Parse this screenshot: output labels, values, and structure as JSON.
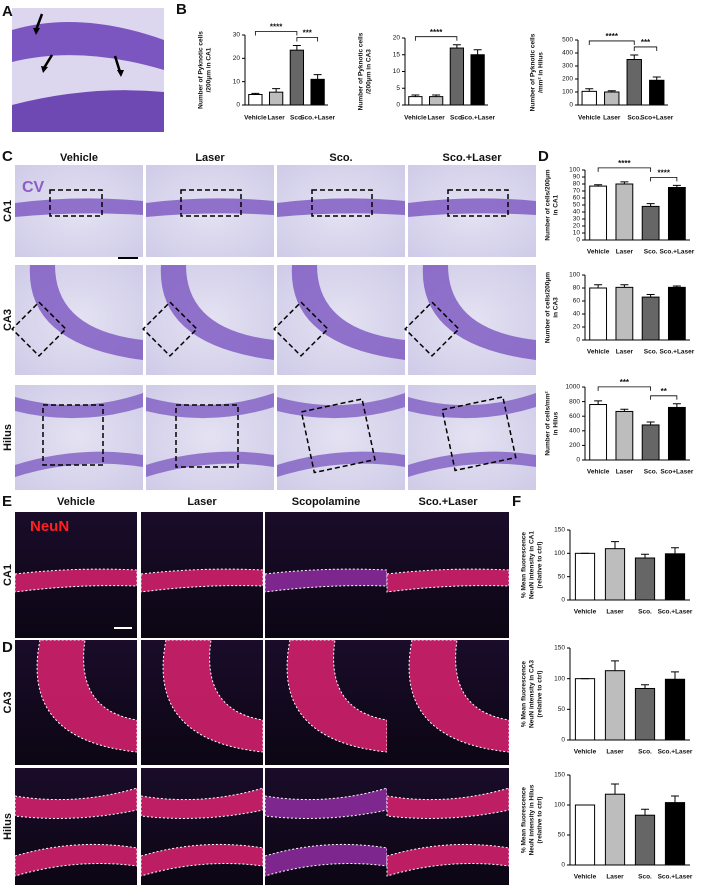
{
  "panels": {
    "labels": [
      "A",
      "B",
      "C",
      "D",
      "E",
      "F",
      "D"
    ],
    "c_columns": [
      "Vehicle",
      "Laser",
      "Sco.",
      "Sco.+Laser"
    ],
    "c_rows": [
      "CA1",
      "CA3",
      "Hilus"
    ],
    "c_stain": "CV",
    "e_columns": [
      "Vehicle",
      "Laser",
      "Scopolamine",
      "Sco.+Laser"
    ],
    "e_rows": [
      "CA1",
      "CA3",
      "Hilus"
    ],
    "e_stain": "NeuN"
  },
  "chart_data": [
    {
      "type": "bar",
      "ylabel": [
        "Number of Pyknotic cells",
        "/200μm in CA1"
      ],
      "categories": [
        "Vehicle",
        "Laser",
        "Sco.",
        "Sco.+Laser"
      ],
      "values": [
        4.5,
        5.5,
        23.5,
        11
      ],
      "errors": [
        0.5,
        1.5,
        2,
        2
      ],
      "colors": [
        "#ffffff",
        "#bdbdbd",
        "#666666",
        "#000000"
      ],
      "ylim": [
        0,
        30
      ],
      "yticks": [
        0,
        10,
        20,
        30
      ],
      "annotations": [
        {
          "text": "****",
          "between": [
            "Vehicle",
            "Sco."
          ]
        },
        {
          "text": "***",
          "between": [
            "Sco.",
            "Sco.+Laser"
          ]
        }
      ]
    },
    {
      "type": "bar",
      "ylabel": [
        "Number of Pyknotic cells",
        "/200μm in CA3"
      ],
      "categories": [
        "Vehicle",
        "Laser",
        "Sco.",
        "Sco.+Laser"
      ],
      "values": [
        2.5,
        2.5,
        17,
        15
      ],
      "errors": [
        0.5,
        0.5,
        1,
        1.5
      ],
      "colors": [
        "#ffffff",
        "#bdbdbd",
        "#666666",
        "#000000"
      ],
      "ylim": [
        0,
        20
      ],
      "yticks": [
        0,
        5,
        10,
        15,
        20
      ],
      "annotations": [
        {
          "text": "****",
          "between": [
            "Vehicle",
            "Sco."
          ]
        }
      ]
    },
    {
      "type": "bar",
      "ylabel": [
        "Number of Pyknotic cells",
        "/mm² in Hilus"
      ],
      "categories": [
        "Vehicle",
        "Laser",
        "Sco.",
        "Sco+Laser"
      ],
      "values": [
        105,
        100,
        350,
        190
      ],
      "errors": [
        20,
        10,
        35,
        25
      ],
      "colors": [
        "#ffffff",
        "#bdbdbd",
        "#666666",
        "#000000"
      ],
      "ylim": [
        0,
        500
      ],
      "yticks": [
        0,
        100,
        200,
        300,
        400,
        500
      ],
      "annotations": [
        {
          "text": "****",
          "between": [
            "Vehicle",
            "Sco."
          ]
        },
        {
          "text": "***",
          "between": [
            "Sco.",
            "Sco+Laser"
          ]
        }
      ]
    },
    {
      "type": "bar",
      "ylabel": [
        "Number of cells/200μm",
        "in CA1"
      ],
      "categories": [
        "Vehicle",
        "Laser",
        "Sco.",
        "Sco.+Laser"
      ],
      "values": [
        77,
        80,
        48,
        75
      ],
      "errors": [
        2,
        3,
        4,
        3
      ],
      "colors": [
        "#ffffff",
        "#bdbdbd",
        "#666666",
        "#000000"
      ],
      "ylim": [
        0,
        100
      ],
      "yticks": [
        0,
        10,
        20,
        30,
        40,
        50,
        60,
        70,
        80,
        90,
        100
      ],
      "annotations": [
        {
          "text": "****",
          "between": [
            "Vehicle",
            "Sco."
          ]
        },
        {
          "text": "****",
          "between": [
            "Sco.",
            "Sco.+Laser"
          ]
        }
      ]
    },
    {
      "type": "bar",
      "ylabel": [
        "Number of cells/200μm",
        "in CA3"
      ],
      "categories": [
        "Vehicle",
        "Laser",
        "Sco.",
        "Sco.+Laser"
      ],
      "values": [
        80,
        81,
        66,
        81
      ],
      "errors": [
        5,
        4,
        4,
        2
      ],
      "colors": [
        "#ffffff",
        "#bdbdbd",
        "#666666",
        "#000000"
      ],
      "ylim": [
        0,
        100
      ],
      "yticks": [
        0,
        20,
        40,
        60,
        80,
        100
      ],
      "annotations": []
    },
    {
      "type": "bar",
      "ylabel": [
        "Number of cells/mm²",
        "in Hilus"
      ],
      "categories": [
        "Vehicle",
        "Laser",
        "Sco.",
        "Sco+Laser"
      ],
      "values": [
        760,
        665,
        480,
        720
      ],
      "errors": [
        50,
        30,
        40,
        50
      ],
      "colors": [
        "#ffffff",
        "#bdbdbd",
        "#666666",
        "#000000"
      ],
      "ylim": [
        0,
        1000
      ],
      "yticks": [
        0,
        200,
        400,
        600,
        800,
        1000
      ],
      "annotations": [
        {
          "text": "***",
          "between": [
            "Vehicle",
            "Sco."
          ]
        },
        {
          "text": "**",
          "between": [
            "Sco.",
            "Sco+Laser"
          ]
        }
      ]
    },
    {
      "type": "bar",
      "ylabel": [
        "% Mean fluorescence",
        "NeuN intensity in CA1",
        "(relative to ctrl)"
      ],
      "categories": [
        "Vehicle",
        "Laser",
        "Sco.",
        "Sco.+Laser"
      ],
      "values": [
        100,
        110,
        90,
        99
      ],
      "errors": [
        0,
        15,
        8,
        13
      ],
      "colors": [
        "#ffffff",
        "#bdbdbd",
        "#666666",
        "#000000"
      ],
      "ylim": [
        0,
        150
      ],
      "yticks": [
        0,
        50,
        100,
        150
      ],
      "annotations": []
    },
    {
      "type": "bar",
      "ylabel": [
        "% Mean fluorescence",
        "NeuN intensity in CA3",
        "(relative to ctrl)"
      ],
      "categories": [
        "Vehicle",
        "Laser",
        "Sco.",
        "Sco.+Laser"
      ],
      "values": [
        100,
        113,
        84,
        99
      ],
      "errors": [
        0,
        16,
        6,
        12
      ],
      "colors": [
        "#ffffff",
        "#bdbdbd",
        "#666666",
        "#000000"
      ],
      "ylim": [
        0,
        150
      ],
      "yticks": [
        0,
        50,
        100,
        150
      ],
      "annotations": []
    },
    {
      "type": "bar",
      "ylabel": [
        "% Mean fluorescence",
        "NeuN intensity in Hilus",
        "(relative to ctrl)"
      ],
      "categories": [
        "Vehicle",
        "Laser",
        "Sco.",
        "Sco.+Laser"
      ],
      "values": [
        100,
        118,
        83,
        104
      ],
      "errors": [
        0,
        17,
        10,
        11
      ],
      "colors": [
        "#ffffff",
        "#bdbdbd",
        "#666666",
        "#000000"
      ],
      "ylim": [
        0,
        150
      ],
      "yticks": [
        0,
        50,
        100,
        150
      ],
      "annotations": []
    }
  ]
}
